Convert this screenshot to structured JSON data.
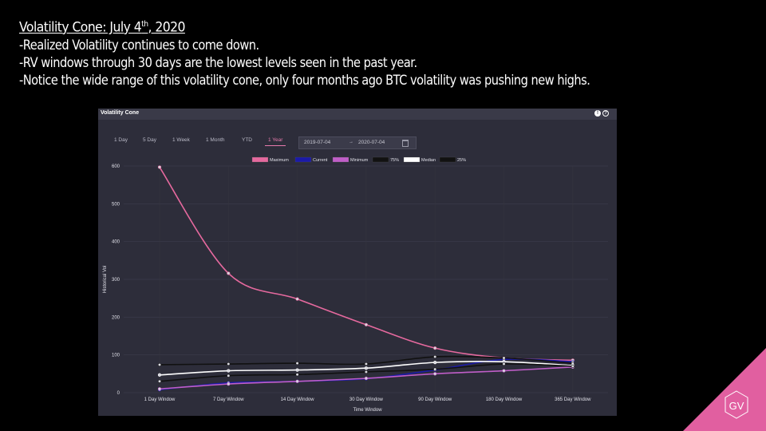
{
  "slide": {
    "title_main": "Volatility Cone: July 4",
    "title_sup": "th",
    "title_end": ", 2020",
    "bullets": [
      "-Realized Volatility continues to come down.",
      "-RV windows through 30 days are the lowest levels seen in the past year.",
      "-Notice the wide range of this volatility cone, only four months ago BTC volatility was pushing new highs."
    ],
    "logo_text": "GV",
    "logo_color": "#e15fa0"
  },
  "panel": {
    "title": "Volatility Cone",
    "tabs": [
      "1 Day",
      "5 Day",
      "1 Week",
      "1 Month",
      "YTD",
      "1 Year"
    ],
    "active_tab": "1 Year",
    "date_from": "2019-07-04",
    "date_to": "2020-07-04",
    "date_sep": "→",
    "icons": [
      "info-icon",
      "help-icon",
      "calendar-icon"
    ]
  },
  "chart_data": {
    "type": "line",
    "categories": [
      "1 Day Window",
      "7 Day Window",
      "14 Day Window",
      "30 Day Window",
      "90 Day Window",
      "180 Day Window",
      "365 Day Window"
    ],
    "ylim": [
      0,
      600
    ],
    "yticks": [
      0,
      100,
      200,
      300,
      400,
      500,
      600
    ],
    "xlabel": "Time Window",
    "ylabel": "Historical Vol",
    "grid": true,
    "legend_position": "top",
    "series": [
      {
        "name": "Maximum",
        "color": "#e5699e",
        "values": [
          597,
          316,
          248,
          180,
          118,
          92,
          86
        ]
      },
      {
        "name": "Current",
        "color": "#1b1aa8",
        "values": [
          8,
          26,
          30,
          37,
          60,
          88,
          82
        ]
      },
      {
        "name": "Minimum",
        "color": "#c05ec8",
        "values": [
          10,
          23,
          30,
          38,
          50,
          58,
          68
        ]
      },
      {
        "name": "75%",
        "color": "#111111",
        "values": [
          74,
          76,
          78,
          76,
          95,
          92,
          78
        ]
      },
      {
        "name": "Median",
        "color": "#ffffff",
        "values": [
          47,
          58,
          60,
          65,
          80,
          82,
          72
        ]
      },
      {
        "name": "25%",
        "color": "#111111",
        "values": [
          30,
          45,
          48,
          55,
          62,
          76,
          70
        ]
      }
    ]
  }
}
